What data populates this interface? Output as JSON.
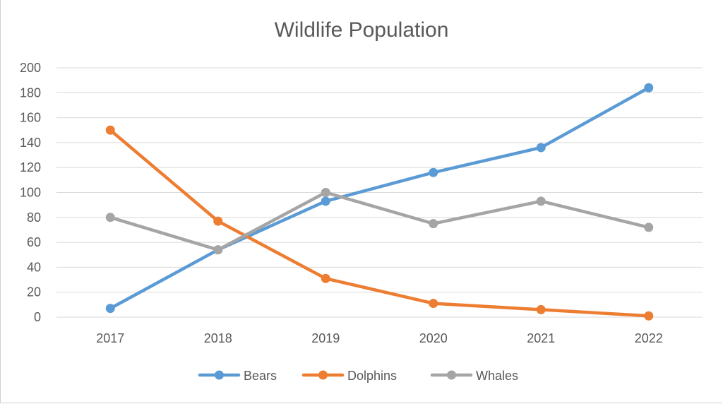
{
  "chart_data": {
    "type": "line",
    "title": "Wildlife Population",
    "xlabel": "",
    "ylabel": "",
    "categories": [
      "2017",
      "2018",
      "2019",
      "2020",
      "2021",
      "2022"
    ],
    "ylim": [
      0,
      200
    ],
    "yticks": [
      0,
      20,
      40,
      60,
      80,
      100,
      120,
      140,
      160,
      180,
      200
    ],
    "grid": true,
    "legend_position": "bottom",
    "series": [
      {
        "name": "Bears",
        "color": "#5B9BD5",
        "values": [
          7,
          54,
          93,
          116,
          136,
          184
        ]
      },
      {
        "name": "Dolphins",
        "color": "#ED7D31",
        "values": [
          150,
          77,
          31,
          11,
          6,
          1
        ]
      },
      {
        "name": "Whales",
        "color": "#A5A5A5",
        "values": [
          80,
          54,
          100,
          75,
          93,
          72
        ]
      }
    ]
  }
}
